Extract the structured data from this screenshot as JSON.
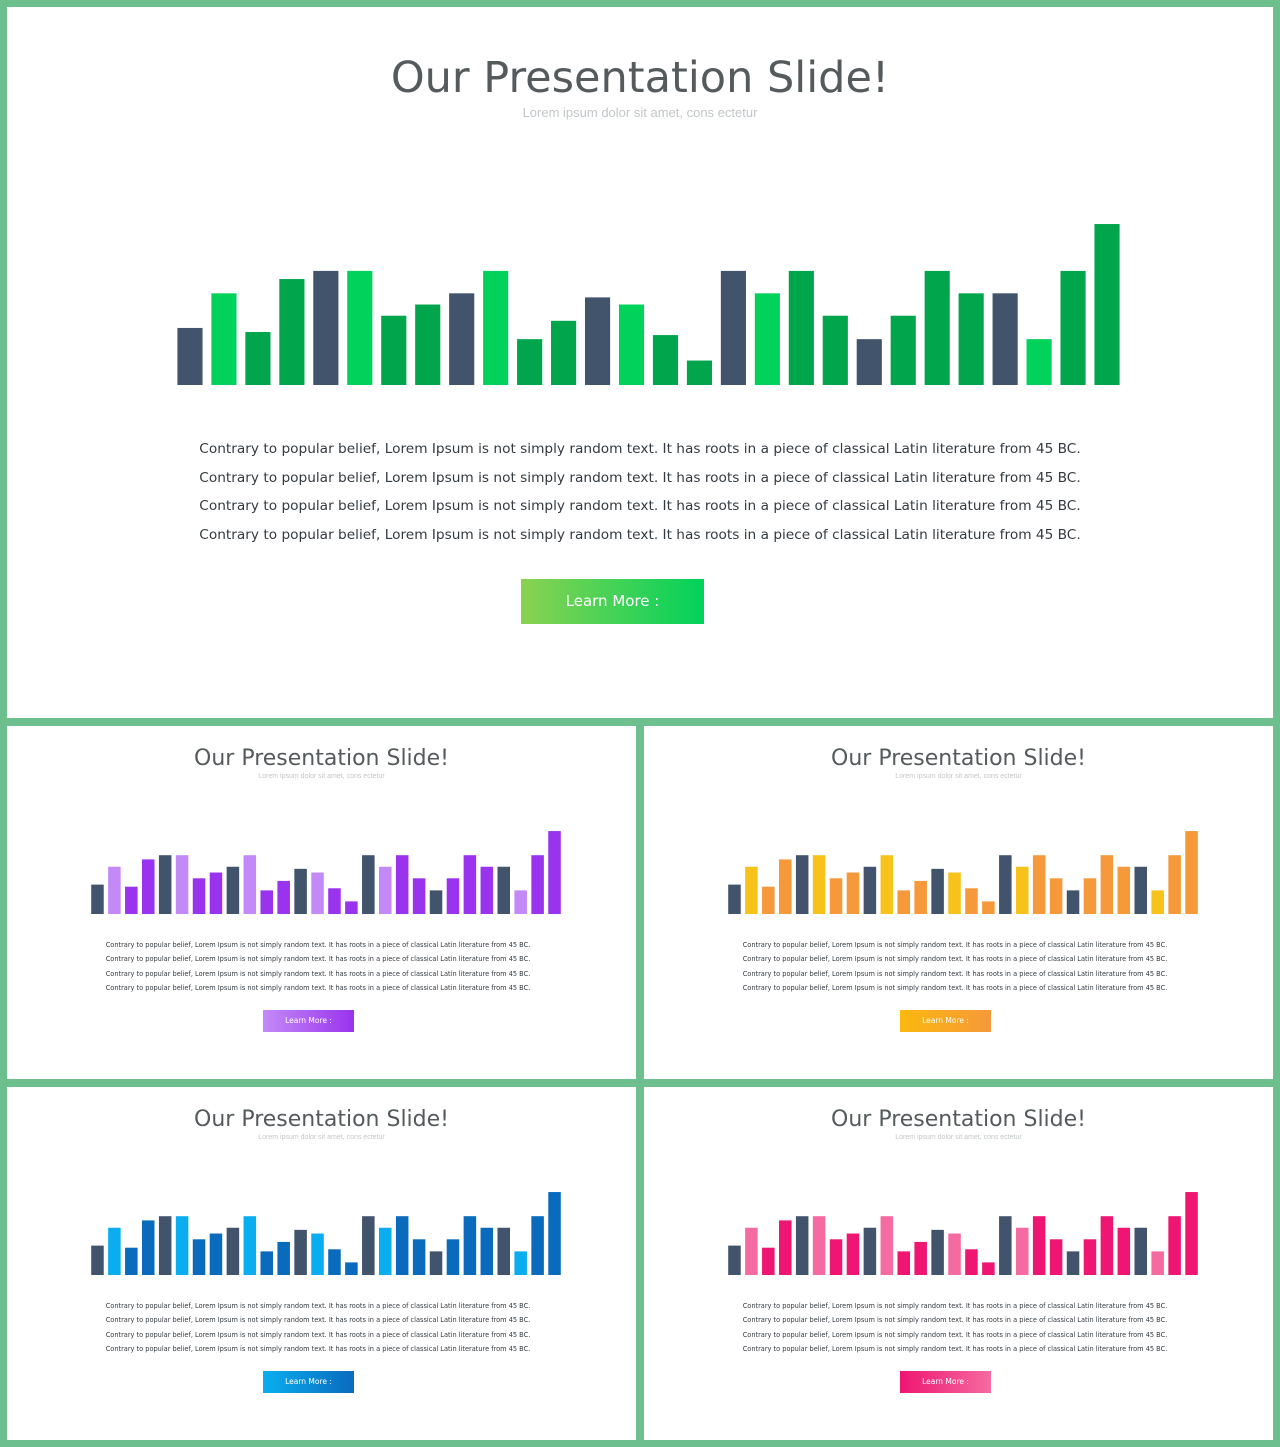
{
  "colors": {
    "background": "#6dbf8e",
    "slate_bar": "#42546b"
  },
  "slides": [
    {
      "id": "main",
      "title": "Our Presentation Slide!",
      "subtitle": "Lorem ipsum dolor sit amet, cons ectetur",
      "body": "Contrary to popular belief, Lorem Ipsum is not simply random text. It has roots in a piece of classical Latin literature from 45 BC. Contrary to popular belief, Lorem Ipsum is not simply random text. It has roots in a piece of classical Latin literature from 45 BC. Contrary to popular belief, Lorem Ipsum is not simply random text. It has roots in a piece of classical Latin literature from 45 BC. Contrary to popular belief, Lorem Ipsum is not simply random text. It has roots in a piece of classical Latin literature from 45 BC.",
      "button_label": "Learn More :",
      "theme": "green",
      "palette": [
        "#42546b",
        "#00d25b",
        "#00a54c"
      ],
      "button_gradient": [
        "#8bd251",
        "#00d25b"
      ]
    },
    {
      "id": "tl",
      "title": "Our Presentation Slide!",
      "subtitle": "Lorem ipsum dolor sit amet, cons ectetur",
      "body": "Contrary to popular belief, Lorem Ipsum is not simply random text. It has roots in a piece of classical Latin literature from 45 BC. Contrary to popular belief, Lorem Ipsum is not simply random text. It has roots in a piece of classical Latin literature from 45 BC. Contrary to popular belief, Lorem Ipsum is not simply random text. It has roots in a piece of classical Latin literature from 45 BC. Contrary to popular belief, Lorem Ipsum is not simply random text. It has roots in a piece of classical Latin literature from 45 BC.",
      "button_label": "Learn More :",
      "theme": "purple",
      "palette": [
        "#42546b",
        "#c38af7",
        "#9933ee"
      ],
      "button_gradient": [
        "#c38af7",
        "#9933ee"
      ]
    },
    {
      "id": "tr",
      "title": "Our Presentation Slide!",
      "subtitle": "Lorem ipsum dolor sit amet, cons ectetur",
      "body": "Contrary to popular belief, Lorem Ipsum is not simply random text. It has roots in a piece of classical Latin literature from 45 BC. Contrary to popular belief, Lorem Ipsum is not simply random text. It has roots in a piece of classical Latin literature from 45 BC. Contrary to popular belief, Lorem Ipsum is not simply random text. It has roots in a piece of classical Latin literature from 45 BC. Contrary to popular belief, Lorem Ipsum is not simply random text. It has roots in a piece of classical Latin literature from 45 BC.",
      "button_label": "Learn More :",
      "theme": "orange",
      "palette": [
        "#42546b",
        "#f7c21a",
        "#f6993a"
      ],
      "button_gradient": [
        "#fbb80e",
        "#f6993a"
      ]
    },
    {
      "id": "bl",
      "title": "Our Presentation Slide!",
      "subtitle": "Lorem ipsum dolor sit amet, cons ectetur",
      "body": "Contrary to popular belief, Lorem Ipsum is not simply random text. It has roots in a piece of classical Latin literature from 45 BC. Contrary to popular belief, Lorem Ipsum is not simply random text. It has roots in a piece of classical Latin literature from 45 BC. Contrary to popular belief, Lorem Ipsum is not simply random text. It has roots in a piece of classical Latin literature from 45 BC. Contrary to popular belief, Lorem Ipsum is not simply random text. It has roots in a piece of classical Latin literature from 45 BC.",
      "button_label": "Learn More :",
      "theme": "blue",
      "palette": [
        "#42546b",
        "#0aaef0",
        "#0a6bbd"
      ],
      "button_gradient": [
        "#0aaef0",
        "#0a6bbd"
      ]
    },
    {
      "id": "br",
      "title": "Our Presentation Slide!",
      "subtitle": "Lorem ipsum dolor sit amet, cons ectetur",
      "body": "Contrary to popular belief, Lorem Ipsum is not simply random text. It has roots in a piece of classical Latin literature from 45 BC. Contrary to popular belief, Lorem Ipsum is not simply random text. It has roots in a piece of classical Latin literature from 45 BC. Contrary to popular belief, Lorem Ipsum is not simply random text. It has roots in a piece of classical Latin literature from 45 BC. Contrary to popular belief, Lorem Ipsum is not simply random text. It has roots in a piece of classical Latin literature from 45 BC.",
      "button_label": "Learn More :",
      "theme": "pink",
      "palette": [
        "#42546b",
        "#f56aa0",
        "#ee1672"
      ],
      "button_gradient": [
        "#ee1672",
        "#f56aa0"
      ]
    }
  ],
  "chart_data": {
    "type": "bar",
    "ylim": [
      0,
      160
    ],
    "values": [
      56,
      90,
      52,
      104,
      112,
      112,
      68,
      79,
      90,
      112,
      45,
      63,
      86,
      79,
      49,
      24,
      112,
      90,
      112,
      68,
      45,
      68,
      112,
      90,
      90,
      45,
      112,
      158
    ],
    "color_index": [
      0,
      1,
      2,
      2,
      0,
      1,
      2,
      2,
      0,
      1,
      2,
      2,
      0,
      1,
      2,
      2,
      0,
      1,
      2,
      2,
      0,
      2,
      2,
      2,
      0,
      1,
      2,
      2
    ]
  }
}
